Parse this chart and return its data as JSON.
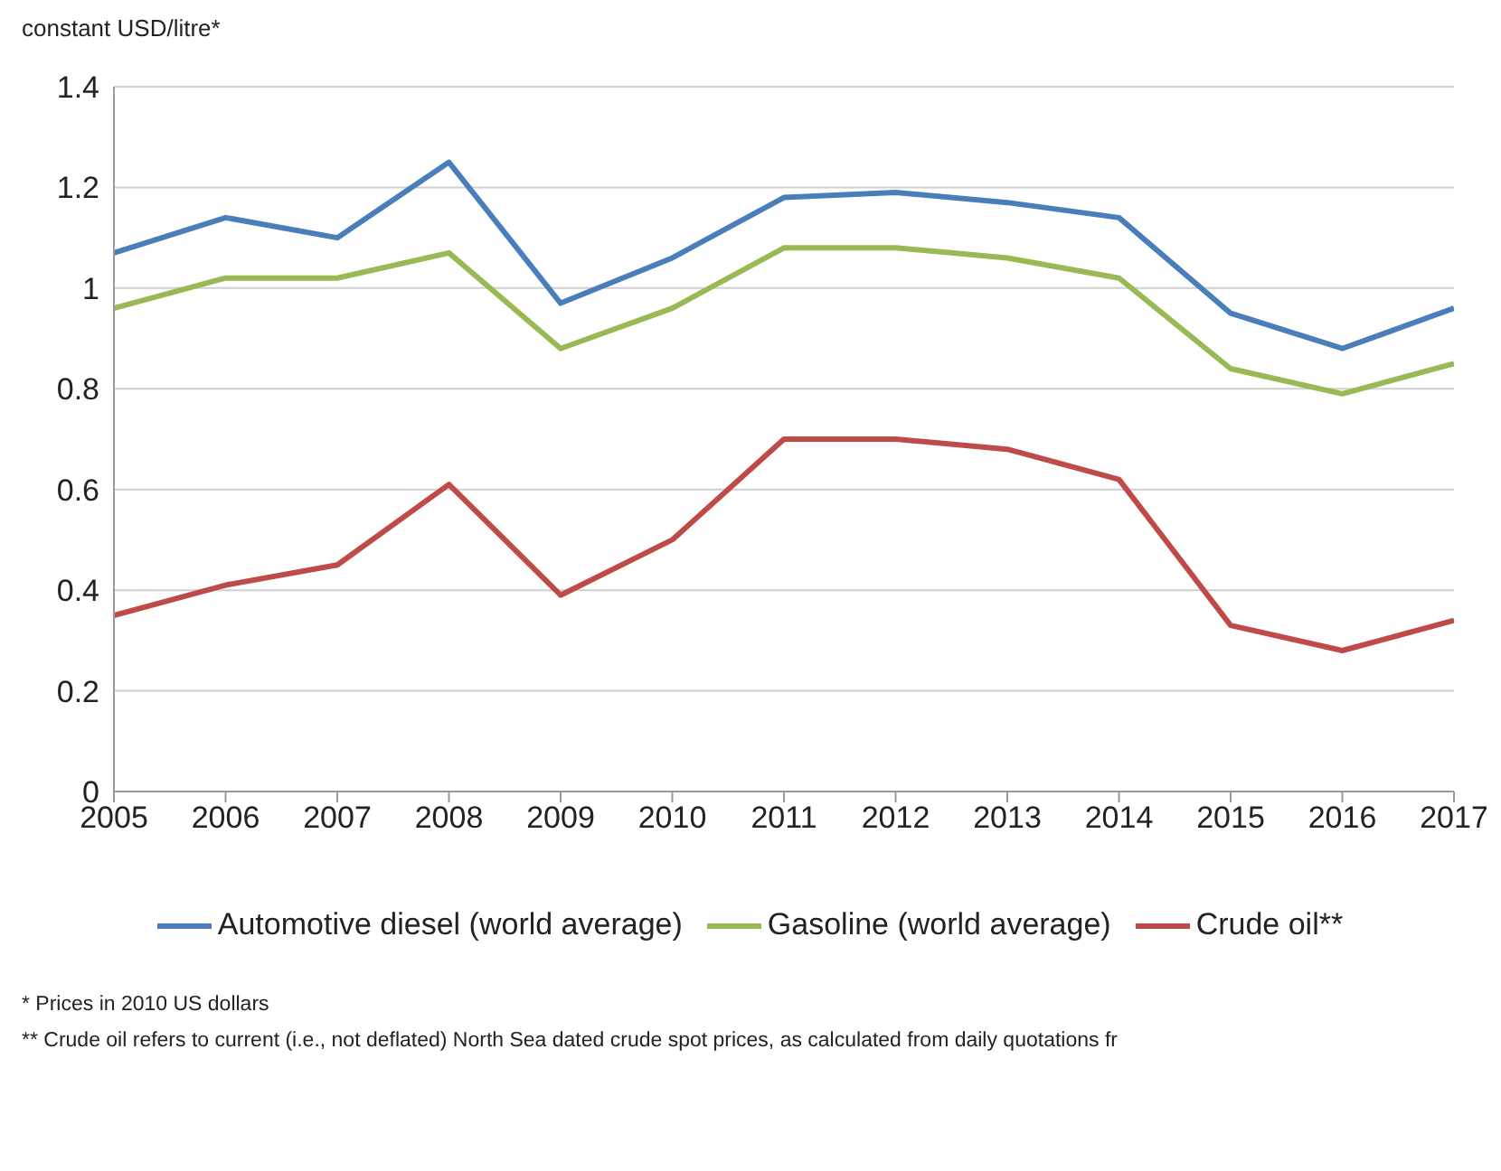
{
  "chart_data": {
    "type": "line",
    "ylabel": "constant USD/litre*",
    "categories": [
      "2005",
      "2006",
      "2007",
      "2008",
      "2009",
      "2010",
      "2011",
      "2012",
      "2013",
      "2014",
      "2015",
      "2016",
      "2017"
    ],
    "series": [
      {
        "name": "Automotive diesel (world average)",
        "color": "#4a7ebb",
        "values": [
          1.07,
          1.14,
          1.1,
          1.25,
          0.97,
          1.06,
          1.18,
          1.19,
          1.17,
          1.14,
          0.95,
          0.88,
          0.96
        ]
      },
      {
        "name": "Gasoline (world average)",
        "color": "#98b954",
        "values": [
          0.96,
          1.02,
          1.02,
          1.07,
          0.88,
          0.96,
          1.08,
          1.08,
          1.06,
          1.02,
          0.84,
          0.79,
          0.85
        ]
      },
      {
        "name": "Crude oil**",
        "color": "#be4b48",
        "values": [
          0.35,
          0.41,
          0.45,
          0.61,
          0.39,
          0.5,
          0.7,
          0.7,
          0.68,
          0.62,
          0.33,
          0.28,
          0.34
        ]
      }
    ],
    "ylim": [
      0,
      1.4
    ],
    "yticks": [
      0,
      0.2,
      0.4,
      0.6,
      0.8,
      1,
      1.2,
      1.4
    ],
    "grid": "y",
    "legend": "bottom",
    "marker": "none",
    "line_style": "solid",
    "annotations": [
      "* Prices in 2010 US dollars",
      "** Crude oil refers to current (i.e., not deflated) North Sea dated crude spot prices, as calculated from daily quotations fr"
    ]
  }
}
